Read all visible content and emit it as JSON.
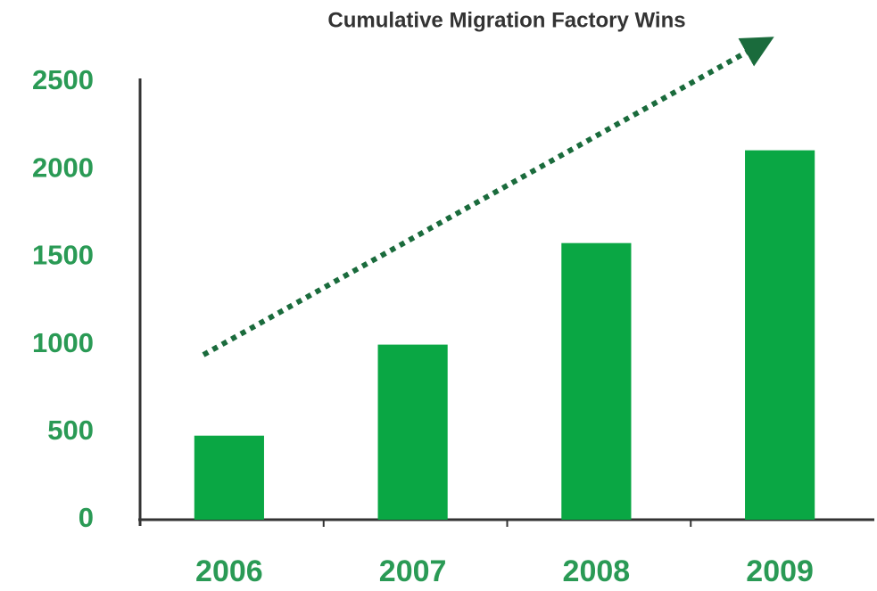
{
  "chart_data": {
    "type": "bar",
    "title": "Cumulative Migration Factory Wins",
    "categories": [
      "2006",
      "2007",
      "2008",
      "2009"
    ],
    "values": [
      480,
      1000,
      1580,
      2110
    ],
    "color": "#0aa744",
    "ylim": [
      0,
      2500
    ],
    "yticks": [
      0,
      500,
      1000,
      1500,
      2000,
      2500
    ],
    "grid": false
  }
}
